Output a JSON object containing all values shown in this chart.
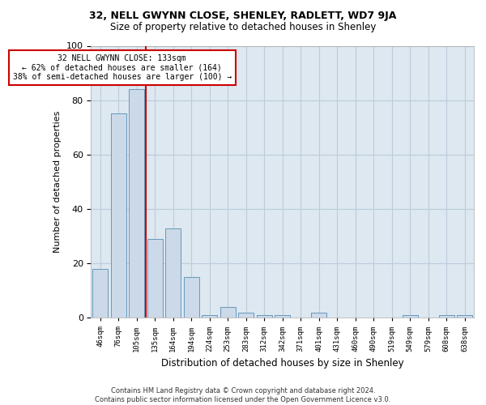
{
  "title": "32, NELL GWYNN CLOSE, SHENLEY, RADLETT, WD7 9JA",
  "subtitle": "Size of property relative to detached houses in Shenley",
  "xlabel": "Distribution of detached houses by size in Shenley",
  "ylabel": "Number of detached properties",
  "bar_color": "#ccd9e8",
  "bar_edge_color": "#6699bb",
  "grid_color": "#bbccdd",
  "bg_color": "#dde8f0",
  "categories": [
    "46sqm",
    "76sqm",
    "105sqm",
    "135sqm",
    "164sqm",
    "194sqm",
    "224sqm",
    "253sqm",
    "283sqm",
    "312sqm",
    "342sqm",
    "371sqm",
    "401sqm",
    "431sqm",
    "460sqm",
    "490sqm",
    "519sqm",
    "549sqm",
    "579sqm",
    "608sqm",
    "638sqm"
  ],
  "values": [
    18,
    75,
    84,
    29,
    33,
    15,
    1,
    4,
    2,
    1,
    1,
    0,
    2,
    0,
    0,
    0,
    0,
    1,
    0,
    1,
    1
  ],
  "ylim": [
    0,
    100
  ],
  "yticks": [
    0,
    20,
    40,
    60,
    80,
    100
  ],
  "property_line_x": 2.5,
  "annotation_text": "32 NELL GWYNN CLOSE: 133sqm\n← 62% of detached houses are smaller (164)\n38% of semi-detached houses are larger (100) →",
  "annotation_box_color": "#ffffff",
  "annotation_box_edge": "#cc0000",
  "property_line_color": "#cc0000",
  "footer_line1": "Contains HM Land Registry data © Crown copyright and database right 2024.",
  "footer_line2": "Contains public sector information licensed under the Open Government Licence v3.0.",
  "title_fontsize": 9,
  "subtitle_fontsize": 8.5
}
